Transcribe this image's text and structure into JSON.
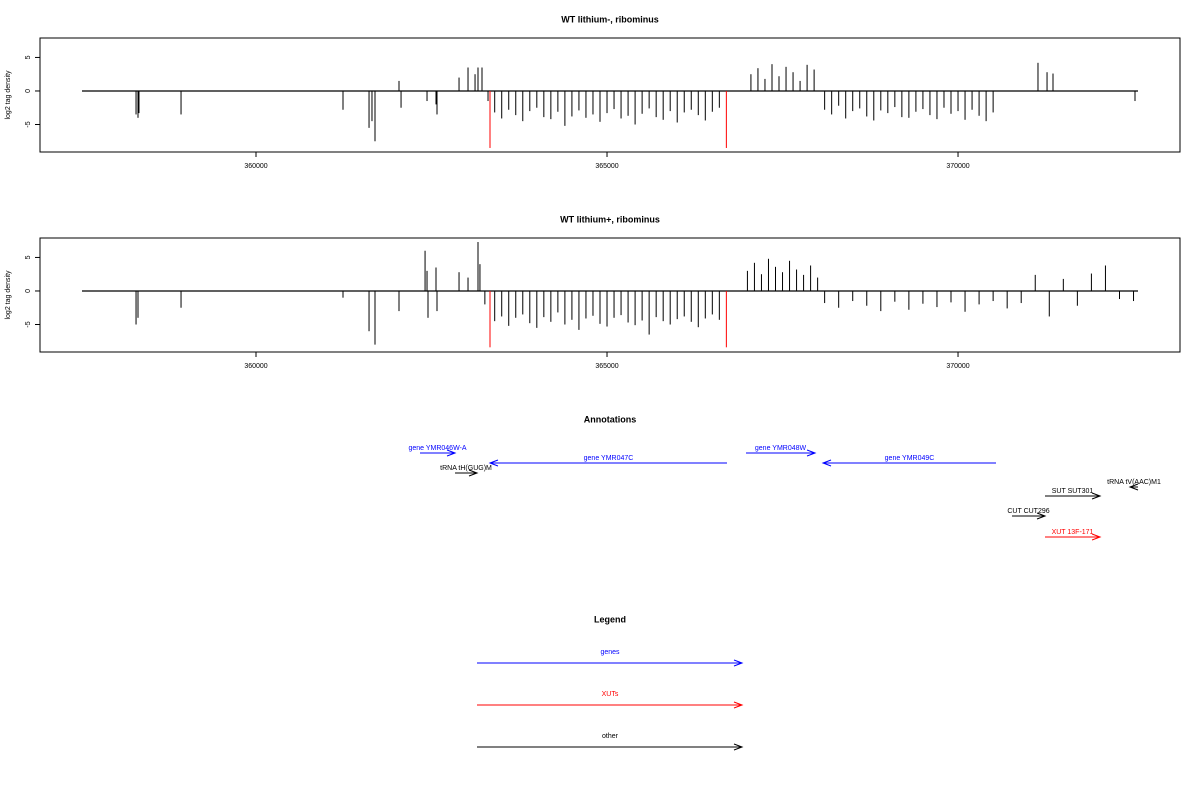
{
  "chart_data": [
    {
      "type": "needle",
      "title": "WT lithium-, ribominus",
      "ylabel": "log2 tag density",
      "xlim": [
        356923,
        373162
      ],
      "ylim": [
        -9.1,
        7.9
      ],
      "xticks": [
        360000,
        365000,
        370000
      ],
      "yticks": [
        -5,
        0,
        5
      ],
      "color": "#000000",
      "x": [
        358291,
        358319,
        358333,
        358932,
        361239,
        361610,
        361652,
        361695,
        362037,
        362066,
        362436,
        362564,
        362578,
        362892,
        363020,
        363120,
        363162,
        363219,
        363305,
        363400,
        363500,
        363600,
        363700,
        363800,
        363900,
        364000,
        364100,
        364200,
        364300,
        364400,
        364500,
        364600,
        364700,
        364800,
        364900,
        365000,
        365100,
        365200,
        365300,
        365400,
        365500,
        365600,
        365700,
        365800,
        365900,
        366000,
        366100,
        366200,
        366300,
        366400,
        366500,
        366600,
        367050,
        367150,
        367250,
        367350,
        367450,
        367550,
        367650,
        367750,
        367850,
        367950,
        368100,
        368200,
        368300,
        368400,
        368500,
        368600,
        368700,
        368800,
        368900,
        369000,
        369100,
        369200,
        369300,
        369400,
        369500,
        369600,
        369700,
        369800,
        369900,
        370000,
        370100,
        370200,
        370300,
        370400,
        370500,
        371139,
        371268,
        371353,
        372521
      ],
      "values": [
        -3.5,
        -4,
        -3.3,
        -3.5,
        -2.8,
        -5.5,
        -4.5,
        -7.5,
        1.5,
        -2.5,
        -1.5,
        -2,
        -3.5,
        2,
        3.5,
        2.5,
        3.5,
        3.5,
        -1.5,
        -3.2,
        -4.1,
        -2.8,
        -3.6,
        -4.5,
        -3.0,
        -2.5,
        -3.9,
        -4.2,
        -3.1,
        -5.2,
        -3.8,
        -2.9,
        -4.0,
        -3.5,
        -4.6,
        -3.3,
        -2.7,
        -4.1,
        -3.7,
        -5.0,
        -3.4,
        -2.6,
        -3.9,
        -4.3,
        -3.0,
        -4.7,
        -3.2,
        -2.8,
        -3.6,
        -4.4,
        -3.1,
        -2.5,
        2.5,
        3.4,
        1.8,
        4.0,
        2.2,
        3.6,
        2.8,
        1.5,
        3.9,
        3.2,
        -2.8,
        -3.5,
        -2.2,
        -4.1,
        -3.0,
        -2.6,
        -3.8,
        -4.4,
        -2.9,
        -3.3,
        -2.4,
        -3.9,
        -4.0,
        -3.1,
        -2.7,
        -3.6,
        -4.2,
        -2.5,
        -3.4,
        -3.0,
        -4.3,
        -2.8,
        -3.7,
        -4.5,
        -3.2,
        4.2,
        2.8,
        2.6,
        -1.5
      ],
      "series": [
        {
          "color": "#ff0000",
          "x": [
            363333,
            366700
          ],
          "values": [
            -8.5,
            -8.5
          ]
        }
      ]
    },
    {
      "type": "needle",
      "title": "WT lithium+, ribominus",
      "ylabel": "log2 tag density",
      "xlim": [
        356923,
        373162
      ],
      "ylim": [
        -9.1,
        7.9
      ],
      "xticks": [
        360000,
        365000,
        370000
      ],
      "yticks": [
        -5,
        0,
        5
      ],
      "color": "#000000",
      "x": [
        358291,
        358319,
        358932,
        361239,
        361610,
        361695,
        362037,
        362408,
        362436,
        362450,
        362564,
        362578,
        362892,
        363020,
        363162,
        363190,
        363260,
        363400,
        363500,
        363600,
        363700,
        363800,
        363900,
        364000,
        364100,
        364200,
        364300,
        364400,
        364500,
        364600,
        364700,
        364800,
        364900,
        365000,
        365100,
        365200,
        365300,
        365400,
        365500,
        365600,
        365700,
        365800,
        365900,
        366000,
        366100,
        366200,
        366300,
        366400,
        366500,
        366600,
        367000,
        367100,
        367200,
        367300,
        367400,
        367500,
        367600,
        367700,
        367800,
        367900,
        368000,
        368100,
        368300,
        368500,
        368700,
        368900,
        369100,
        369300,
        369500,
        369700,
        369900,
        370100,
        370300,
        370500,
        370700,
        370900,
        371100,
        371300,
        371500,
        371700,
        371900,
        372100,
        372300,
        372500
      ],
      "values": [
        -5,
        -4,
        -2.5,
        -1,
        -6,
        -8,
        -3,
        6,
        3,
        -4,
        3.5,
        -3,
        2.8,
        2,
        7.3,
        4,
        -2,
        -4.5,
        -3.8,
        -5.2,
        -4.0,
        -3.5,
        -4.8,
        -5.5,
        -3.9,
        -4.6,
        -3.2,
        -5.0,
        -4.3,
        -5.8,
        -4.1,
        -3.7,
        -4.9,
        -5.3,
        -4.0,
        -3.6,
        -4.7,
        -5.1,
        -4.4,
        -6.5,
        -3.9,
        -4.5,
        -5.0,
        -4.2,
        -3.8,
        -4.6,
        -5.4,
        -4.1,
        -3.5,
        -4.3,
        3.0,
        4.2,
        2.5,
        4.8,
        3.6,
        2.8,
        4.5,
        3.2,
        2.4,
        3.8,
        2.0,
        -1.8,
        -2.5,
        -1.5,
        -2.2,
        -3.0,
        -1.6,
        -2.8,
        -1.9,
        -2.4,
        -1.7,
        -3.1,
        -2.0,
        -1.5,
        -2.6,
        -1.8,
        2.4,
        -3.8,
        1.8,
        -2.2,
        2.6,
        3.8,
        -1.2,
        -1.5
      ],
      "series": [
        {
          "color": "#ff0000",
          "x": [
            363333,
            366700
          ],
          "values": [
            -8.4,
            -8.4
          ]
        }
      ]
    }
  ],
  "annotations": {
    "title": "Annotations",
    "features": [
      {
        "label": "gene YMR046W-A",
        "start": 362336,
        "end": 362835,
        "color": "#0000ff"
      },
      {
        "label": "tRNA tH(GUG)M",
        "start": 362835,
        "end": 363148,
        "color": "#000000"
      },
      {
        "label": "gene YMR047C",
        "start": 366709,
        "end": 363333,
        "color": "#0000ff"
      },
      {
        "label": "gene YMR048W",
        "start": 366980,
        "end": 367963,
        "color": "#0000ff"
      },
      {
        "label": "gene YMR049C",
        "start": 370541,
        "end": 368077,
        "color": "#0000ff"
      },
      {
        "label": "tRNA tV(AAC)M1",
        "start": 372564,
        "end": 372450,
        "color": "#000000"
      },
      {
        "label": "SUT SUT301",
        "start": 371239,
        "end": 372023,
        "color": "#000000"
      },
      {
        "label": "CUT CUT296",
        "start": 370769,
        "end": 371239,
        "color": "#000000"
      },
      {
        "label": "XUT 13F-171",
        "start": 371239,
        "end": 372023,
        "color": "#ff0000"
      }
    ]
  },
  "legend": {
    "title": "Legend",
    "items": [
      {
        "label": "genes",
        "color": "#0000ff"
      },
      {
        "label": "XUTs",
        "color": "#ff0000"
      },
      {
        "label": "other",
        "color": "#000000"
      }
    ]
  }
}
